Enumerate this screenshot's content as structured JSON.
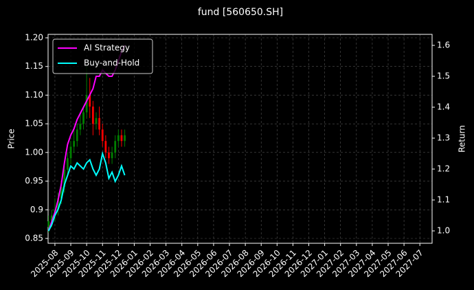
{
  "chart_data": {
    "type": "candlestick",
    "title": "fund [560650.SH]",
    "ylabel": "Price",
    "y2label": "Return",
    "ylim": [
      0.8416,
      1.206
    ],
    "yticks": [
      0.85,
      0.9,
      0.95,
      {
        "value": 1.0,
        "label": "1.00"
      },
      1.05,
      {
        "value": 1.1,
        "label": "1.10"
      },
      1.15,
      {
        "value": 1.2,
        "label": "1.20"
      }
    ],
    "y2lim": [
      0.96,
      1.6356
    ],
    "y2ticks": [
      {
        "value": 1.0,
        "label": "1.0"
      },
      1.1,
      1.2,
      1.3,
      1.4,
      1.5,
      1.6
    ],
    "xlim": [
      -0.43,
      23.77
    ],
    "xticks": [
      {
        "value": 0,
        "label": "2025-08"
      },
      {
        "value": 1,
        "label": "2025-09"
      },
      {
        "value": 2,
        "label": "2025-10"
      },
      {
        "value": 3,
        "label": "2025-11"
      },
      {
        "value": 4,
        "label": "2025-12"
      },
      {
        "value": 5,
        "label": "2026-01"
      },
      {
        "value": 6,
        "label": "2026-02"
      },
      {
        "value": 7,
        "label": "2026-03"
      },
      {
        "value": 8,
        "label": "2026-04"
      },
      {
        "value": 9,
        "label": "2026-05"
      },
      {
        "value": 10,
        "label": "2026-06"
      },
      {
        "value": 11,
        "label": "2026-07"
      },
      {
        "value": 12,
        "label": "2026-08"
      },
      {
        "value": 13,
        "label": "2026-09"
      },
      {
        "value": 14,
        "label": "2026-10"
      },
      {
        "value": 15,
        "label": "2026-11"
      },
      {
        "value": 16,
        "label": "2026-12"
      },
      {
        "value": 17,
        "label": "2027-01"
      },
      {
        "value": 18,
        "label": "2027-02"
      },
      {
        "value": 19,
        "label": "2027-03"
      },
      {
        "value": 20,
        "label": "2027-04"
      },
      {
        "value": 21,
        "label": "2027-05"
      },
      {
        "value": 22,
        "label": "2027-06"
      },
      {
        "value": 23,
        "label": "2027-07"
      }
    ],
    "grid": true,
    "legend": "upper left",
    "up_color": "#008000",
    "down_color": "#ff0000",
    "x": [
      -0.4,
      -0.2,
      0,
      0.2,
      0.4,
      0.6,
      0.8,
      1.0,
      1.2,
      1.4,
      1.6,
      1.8,
      2.0,
      2.2,
      2.4,
      2.6,
      2.8,
      3.0,
      3.2,
      3.4,
      3.6,
      3.8,
      4.0,
      4.2,
      4.4
    ],
    "open": [
      0.87,
      0.88,
      0.89,
      0.9,
      0.92,
      0.94,
      0.97,
      0.99,
      1.01,
      1.02,
      1.04,
      1.05,
      1.07,
      1.1,
      1.08,
      1.05,
      1.06,
      1.04,
      1.02,
      1.0,
      0.99,
      1.0,
      1.02,
      1.03,
      1.02
    ],
    "high": [
      0.89,
      0.9,
      0.92,
      0.93,
      0.95,
      0.98,
      1.0,
      1.02,
      1.04,
      1.05,
      1.07,
      1.08,
      1.15,
      1.13,
      1.09,
      1.07,
      1.08,
      1.05,
      1.03,
      1.01,
      1.01,
      1.03,
      1.04,
      1.04,
      1.04
    ],
    "low": [
      0.86,
      0.87,
      0.88,
      0.89,
      0.91,
      0.93,
      0.96,
      0.98,
      1.0,
      1.01,
      1.03,
      1.04,
      1.06,
      1.06,
      1.03,
      1.04,
      1.03,
      1.01,
      0.99,
      0.98,
      0.98,
      0.99,
      1.01,
      1.01,
      1.01
    ],
    "close": [
      0.88,
      0.89,
      0.9,
      0.92,
      0.94,
      0.97,
      0.99,
      1.01,
      1.02,
      1.04,
      1.05,
      1.07,
      1.1,
      1.08,
      1.05,
      1.06,
      1.04,
      1.02,
      1.0,
      0.99,
      1.0,
      1.02,
      1.03,
      1.02,
      1.03
    ],
    "series": [
      {
        "name": "AI Strategy",
        "color": "#ff00ff",
        "axis": "y2",
        "values": [
          1.0,
          1.03,
          1.06,
          1.1,
          1.15,
          1.22,
          1.28,
          1.31,
          1.33,
          1.36,
          1.38,
          1.4,
          1.42,
          1.44,
          1.46,
          1.5,
          1.5,
          1.52,
          1.51,
          1.5,
          1.5,
          1.52,
          1.55,
          1.58,
          1.6
        ]
      },
      {
        "name": "Buy-and-Hold",
        "color": "#00ffff",
        "axis": "y2",
        "values": [
          1.0,
          1.02,
          1.05,
          1.07,
          1.1,
          1.15,
          1.18,
          1.21,
          1.2,
          1.22,
          1.21,
          1.2,
          1.22,
          1.23,
          1.2,
          1.18,
          1.2,
          1.25,
          1.22,
          1.17,
          1.19,
          1.16,
          1.18,
          1.21,
          1.18
        ]
      }
    ]
  }
}
